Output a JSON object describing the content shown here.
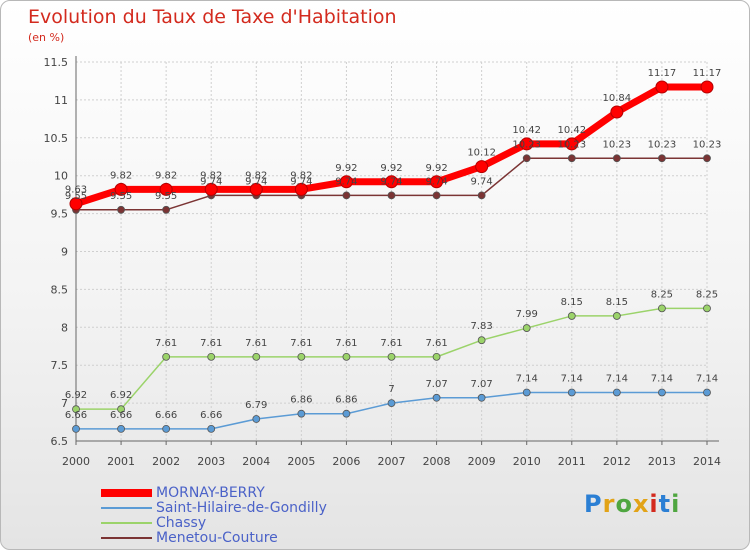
{
  "title": "Evolution du Taux de Taxe d'Habitation",
  "unit": "(en %)",
  "logo": {
    "text": "Proxiti",
    "colors": [
      "#2b7fd4",
      "#e2a317",
      "#4fa640",
      "#e2a317",
      "#d32a1e",
      "#2b7fd4",
      "#4fa640"
    ]
  },
  "chart_data": {
    "type": "line",
    "x": [
      "2000",
      "2001",
      "2002",
      "2003",
      "2004",
      "2005",
      "2006",
      "2007",
      "2008",
      "2009",
      "2010",
      "2011",
      "2012",
      "2013",
      "2014"
    ],
    "ylim": [
      6.5,
      11.5
    ],
    "yticks": [
      "6.5",
      "7",
      "7.5",
      "8",
      "8.5",
      "9",
      "9.5",
      "10",
      "10.5",
      "11",
      "11.5"
    ],
    "grid": true,
    "legend_position": "bottom",
    "series": [
      {
        "name": "MORNAY-BERRY",
        "color": "#ff0000",
        "values": [
          9.63,
          9.82,
          9.82,
          9.82,
          9.82,
          9.82,
          9.92,
          9.92,
          9.92,
          10.12,
          10.42,
          10.42,
          10.84,
          11.17,
          11.17
        ],
        "labels": [
          "9.63",
          "9.82",
          "9.82",
          "9.82",
          "9.82",
          "9.82",
          "9.92",
          "9.92",
          "9.92",
          "10.12",
          "10.42",
          "10.42",
          "10.84",
          "11.17",
          "11.17"
        ]
      },
      {
        "name": "Saint-Hilaire-de-Gondilly",
        "color": "#5b9bd5",
        "values": [
          6.66,
          6.66,
          6.66,
          6.66,
          6.79,
          6.86,
          6.86,
          7,
          7.07,
          7.07,
          7.14,
          7.14,
          7.14,
          7.14,
          7.14
        ],
        "labels": [
          "6.66",
          "6.66",
          "6.66",
          "6.66",
          "6.79",
          "6.86",
          "6.86",
          "7",
          "7.07",
          "7.07",
          "7.14",
          "7.14",
          "7.14",
          "7.14",
          "7.14"
        ]
      },
      {
        "name": "Chassy",
        "color": "#9bd36a",
        "values": [
          6.92,
          6.92,
          7.61,
          7.61,
          7.61,
          7.61,
          7.61,
          7.61,
          7.61,
          7.83,
          7.99,
          8.15,
          8.15,
          8.25,
          8.25
        ],
        "labels": [
          "6.92",
          "6.92",
          "7.61",
          "7.61",
          "7.61",
          "7.61",
          "7.61",
          "7.61",
          "7.61",
          "7.83",
          "7.99",
          "8.15",
          "8.15",
          "8.25",
          "8.25"
        ]
      },
      {
        "name": "Menetou-Couture",
        "color": "#7b3434",
        "values": [
          9.55,
          9.55,
          9.55,
          9.74,
          9.74,
          9.74,
          9.74,
          9.74,
          9.74,
          9.74,
          10.23,
          10.23,
          10.23,
          10.23,
          10.23
        ],
        "labels": [
          "9.55",
          "9.55",
          "9.55",
          "9.74",
          "9.74",
          "9.74",
          "9.74",
          "9.74",
          "9.74",
          "9.74",
          "10.23",
          "10.23",
          "10.23",
          "10.23",
          "10.23"
        ]
      }
    ]
  }
}
